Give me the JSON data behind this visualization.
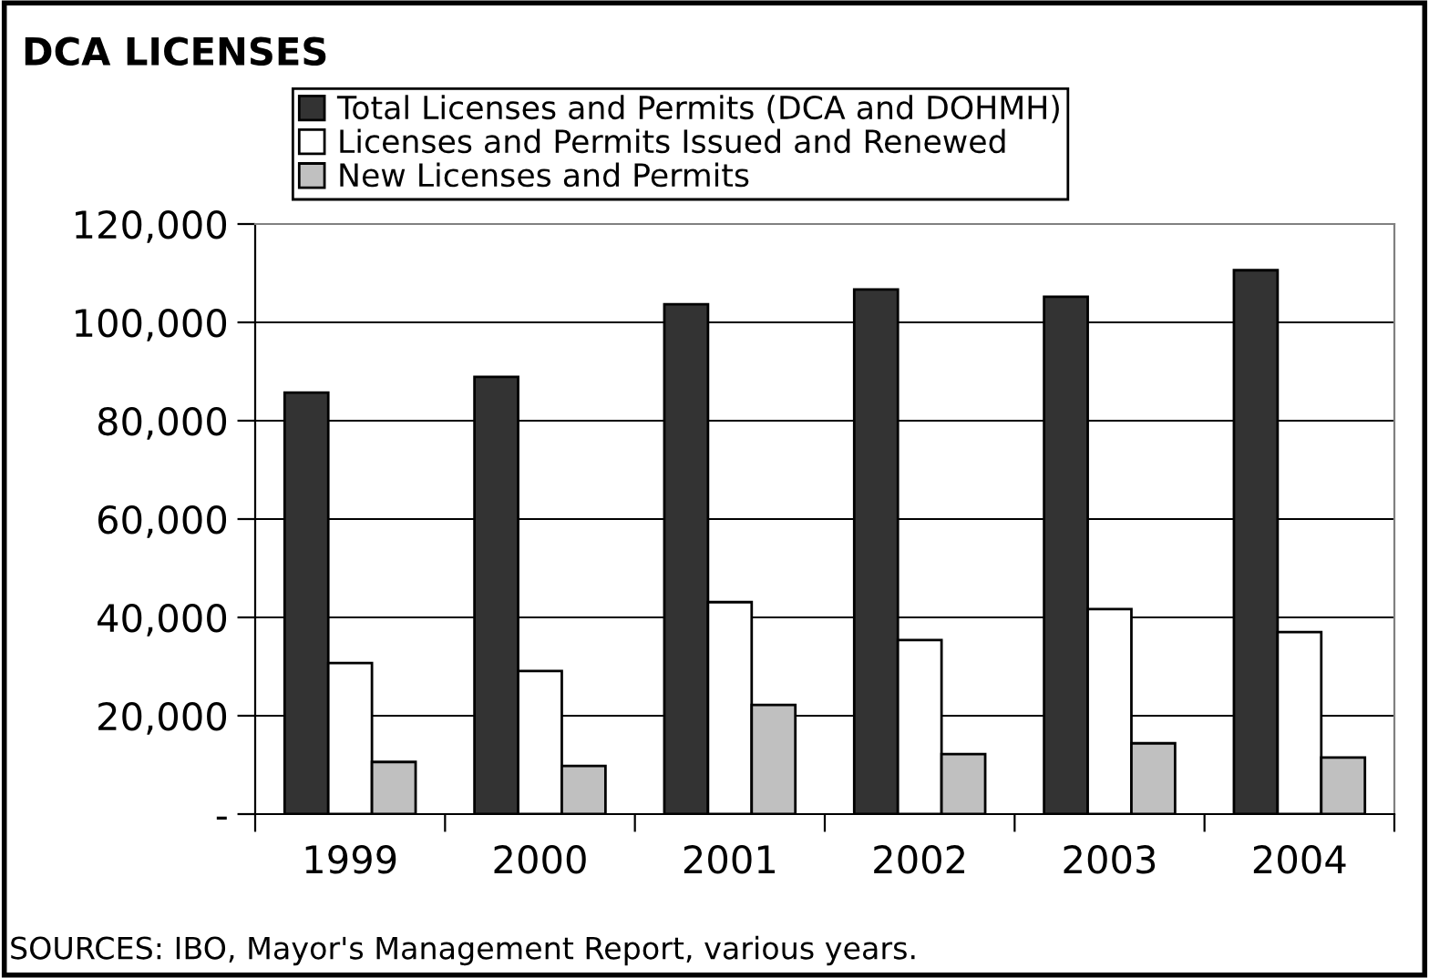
{
  "chart_data": {
    "type": "bar",
    "title": "DCA LICENSES",
    "categories": [
      "1999",
      "2000",
      "2001",
      "2002",
      "2003",
      "2004"
    ],
    "series": [
      {
        "name": "Total Licenses and Permits (DCA and DOHMH)",
        "color": "#333333",
        "values": [
          85700,
          88900,
          103700,
          106700,
          105200,
          110600
        ]
      },
      {
        "name": "Licenses and Permits Issued and Renewed",
        "color": "#ffffff",
        "values": [
          30700,
          29100,
          43100,
          35400,
          41700,
          37000
        ]
      },
      {
        "name": "New Licenses and Permits",
        "color": "#c0c0c0",
        "values": [
          10600,
          9800,
          22200,
          12200,
          14400,
          11500
        ]
      }
    ],
    "ylim": [
      0,
      120000
    ],
    "yticks": [
      {
        "value": 0,
        "label": "-"
      },
      {
        "value": 20000,
        "label": "20,000"
      },
      {
        "value": 40000,
        "label": "40,000"
      },
      {
        "value": 60000,
        "label": "60,000"
      },
      {
        "value": 80000,
        "label": "80,000"
      },
      {
        "value": 100000,
        "label": "100,000"
      },
      {
        "value": 120000,
        "label": "120,000"
      }
    ],
    "grid": "y",
    "legend": "top",
    "annotations": [
      "SOURCES: IBO, Mayor's Management Report, various years."
    ]
  }
}
